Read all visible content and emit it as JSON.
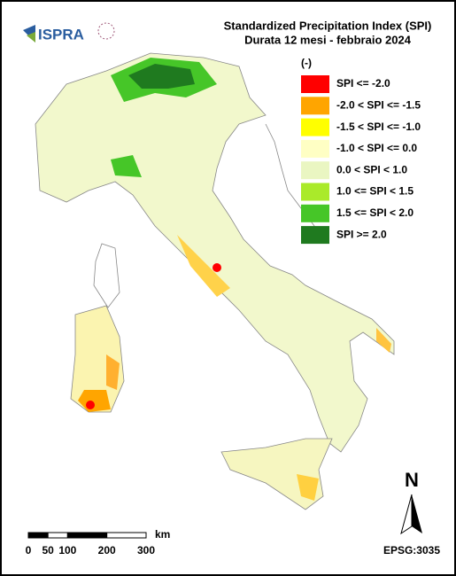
{
  "header": {
    "logo_text": "ISPRA",
    "title": "Standardized Precipitation  Index (SPI)",
    "subtitle": "Durata 12 mesi - febbraio 2024"
  },
  "legend": {
    "unit": "(-)",
    "items": [
      {
        "label": "SPI <= -2.0",
        "color": "#ff0000"
      },
      {
        "label": "-2.0 < SPI <= -1.5",
        "color": "#ffa500"
      },
      {
        "label": "-1.5 < SPI <= -1.0",
        "color": "#ffff00"
      },
      {
        "label": "-1.0 < SPI <= 0.0",
        "color": "#ffffc4"
      },
      {
        "label": "0.0 < SPI < 1.0",
        "color": "#eaf6c2"
      },
      {
        "label": "1.0 <= SPI < 1.5",
        "color": "#aaea2a"
      },
      {
        "label": "1.5 <= SPI < 2.0",
        "color": "#46c628"
      },
      {
        "label": "SPI >= 2.0",
        "color": "#1f7a1f"
      }
    ]
  },
  "scale_bar": {
    "labels": [
      0,
      50,
      100,
      200,
      300
    ],
    "unit": "km"
  },
  "north": "N",
  "projection": "EPSG:3035"
}
